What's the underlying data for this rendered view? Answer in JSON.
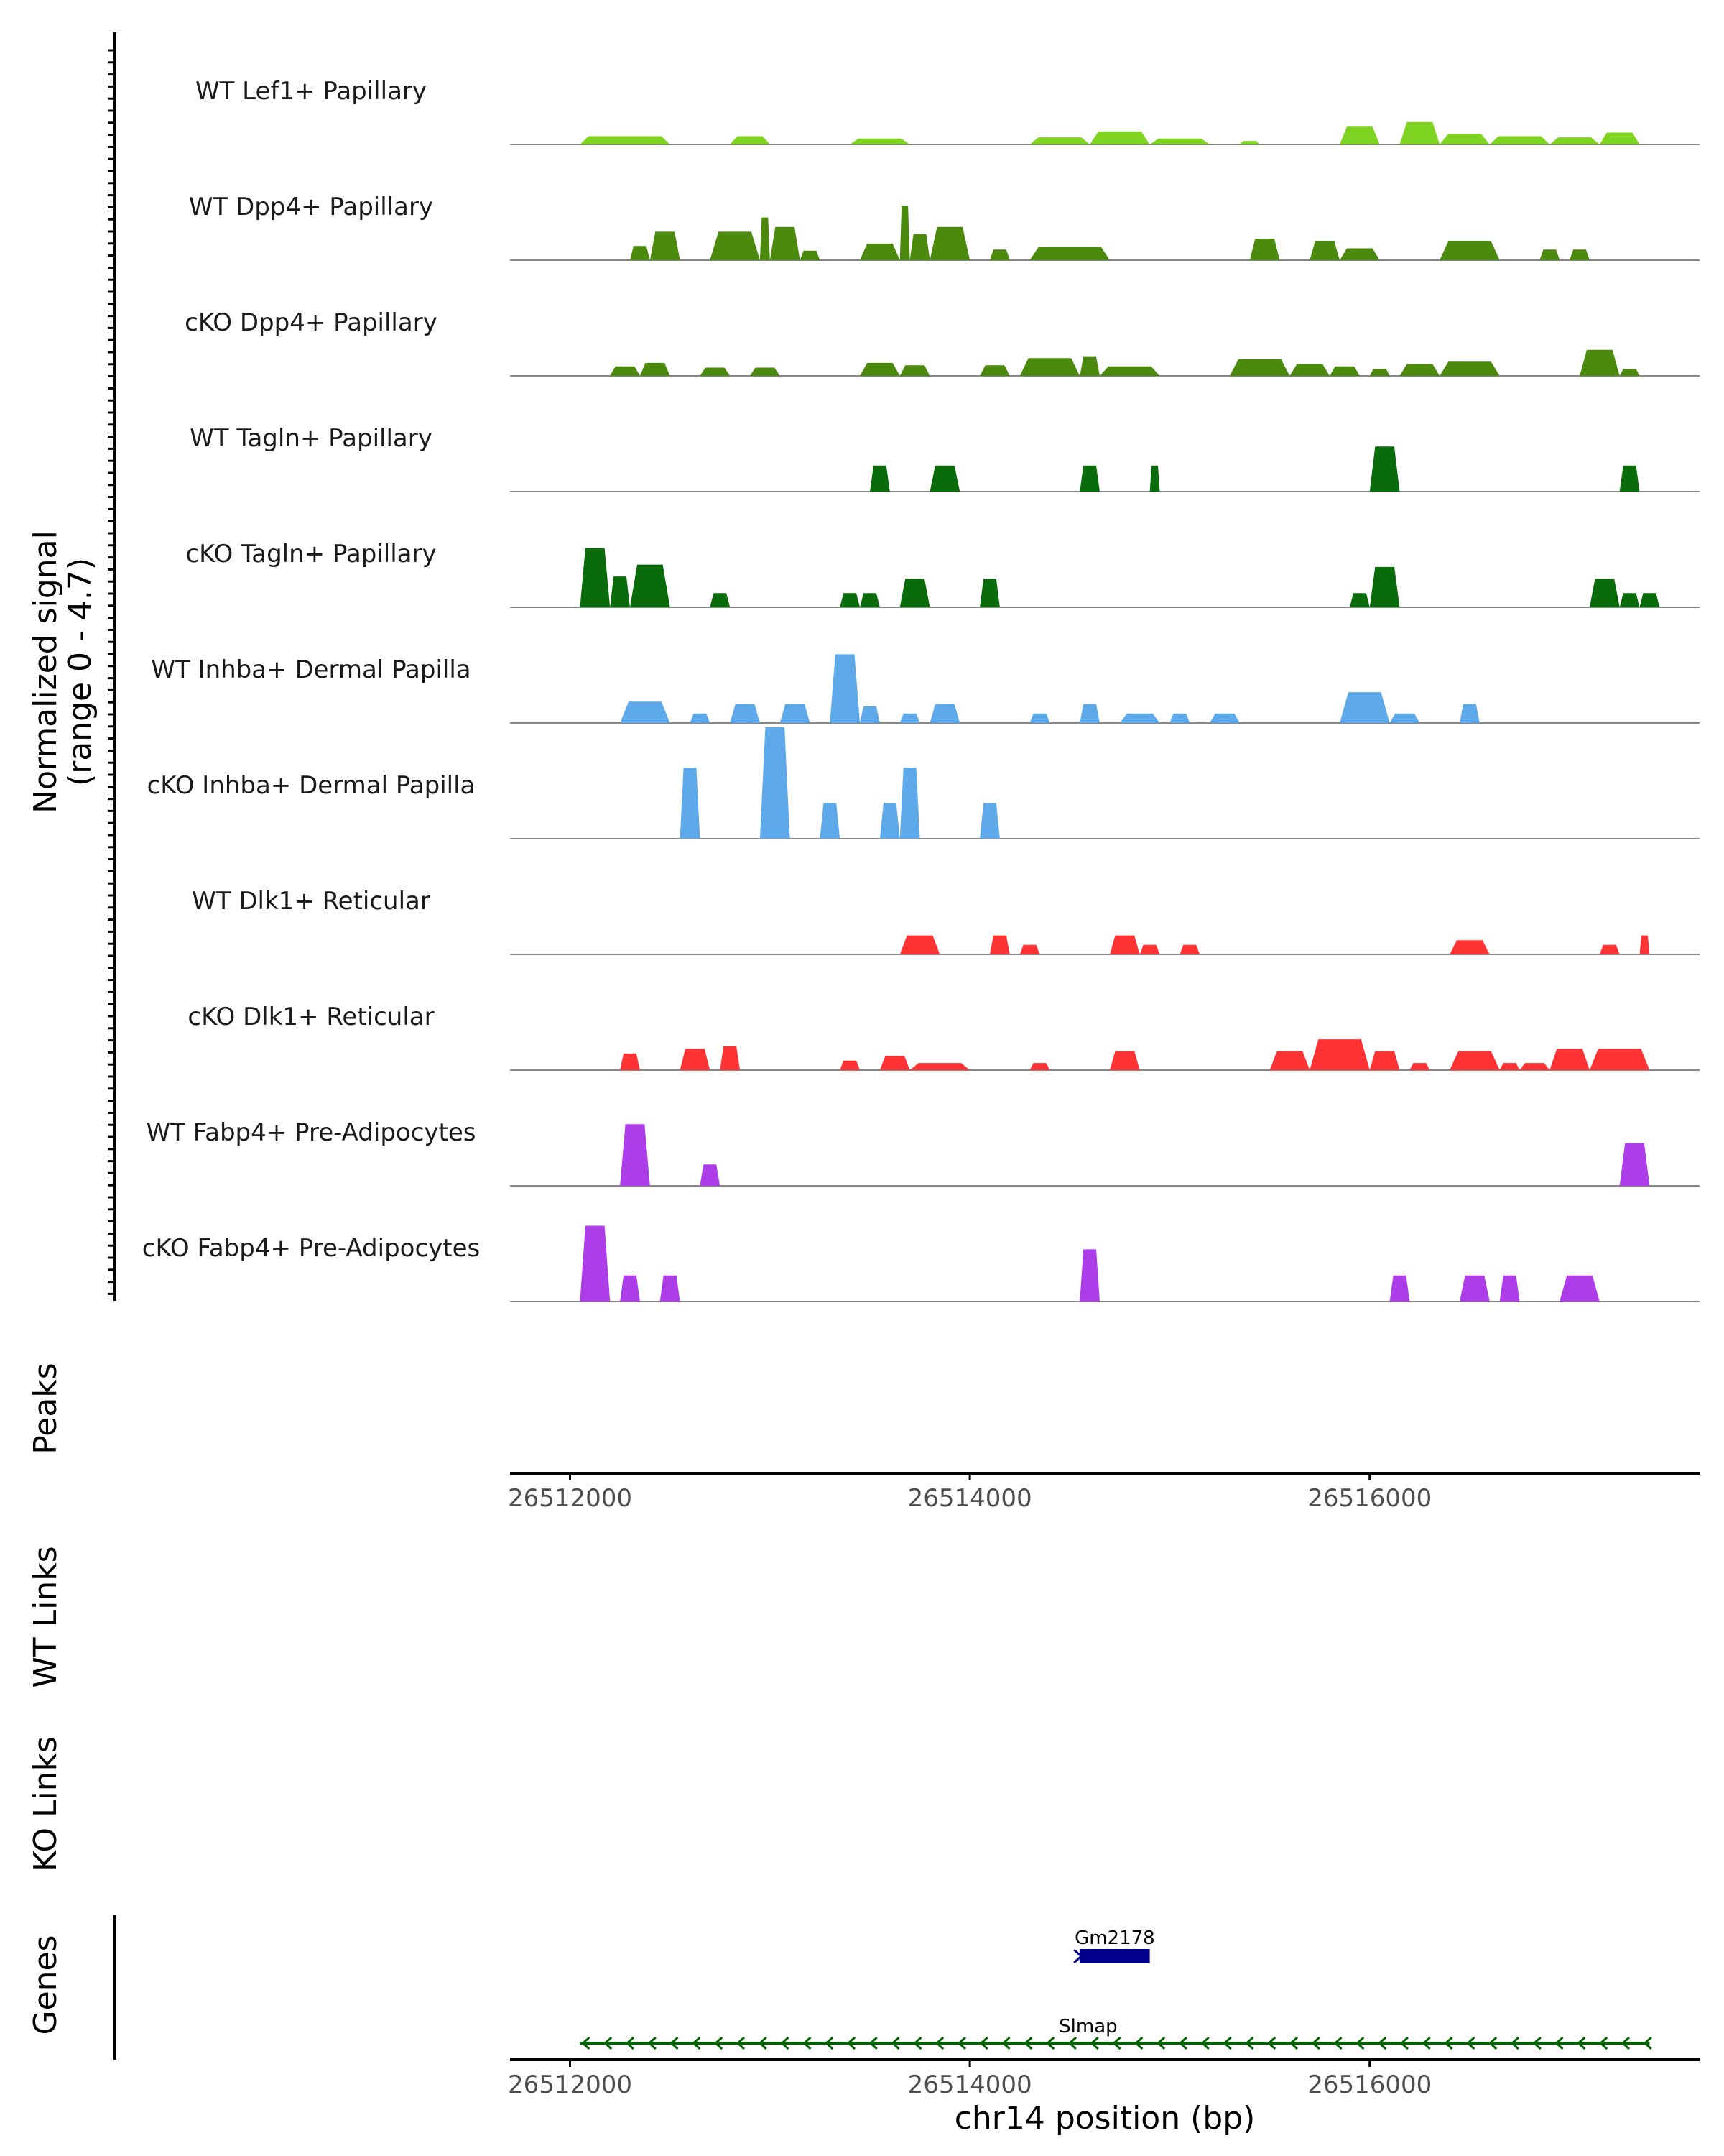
{
  "chart_data": {
    "type": "area",
    "title": "",
    "ylabel": "Normalized signal",
    "ylabel_range": "(range 0 - 4.7)",
    "ylim": [
      0,
      4.7
    ],
    "xlabel": "chr14 position (bp)",
    "xlim": [
      26511700,
      26517650
    ],
    "x_ticks": [
      26512000,
      26514000,
      26516000
    ],
    "x_tick_labels": [
      "26512000",
      "26514000",
      "26516000"
    ],
    "panels": {
      "peaks": "Peaks",
      "wt_links": "WT Links",
      "ko_links": "KO Links",
      "genes": "Genes"
    },
    "colors": {
      "lef1": "#7fd321",
      "dpp4": "#4c8a0e",
      "tagln": "#0a6b0a",
      "inhba": "#5ea9e9",
      "dlk1": "#ff3333",
      "fabp4": "#ad3de8",
      "gene_gm": "#00008b",
      "gene_slmap": "#006400"
    },
    "series": [
      {
        "name": "WT Lef1+ Papillary",
        "color": "#7fd321",
        "blocks": [
          [
            26512050,
            26512500,
            0.35
          ],
          [
            26512800,
            26513000,
            0.35
          ],
          [
            26513400,
            26513700,
            0.25
          ],
          [
            26514300,
            26514600,
            0.3
          ],
          [
            26514600,
            26514900,
            0.55
          ],
          [
            26514900,
            26515200,
            0.25
          ],
          [
            26515350,
            26515450,
            0.15
          ],
          [
            26515850,
            26516050,
            0.75
          ],
          [
            26516150,
            26516350,
            0.95
          ],
          [
            26516350,
            26516600,
            0.45
          ],
          [
            26516600,
            26516900,
            0.35
          ],
          [
            26516900,
            26517150,
            0.3
          ],
          [
            26517150,
            26517350,
            0.5
          ]
        ]
      },
      {
        "name": "WT Dpp4+ Papillary",
        "color": "#4c8a0e",
        "blocks": [
          [
            26512300,
            26512400,
            0.6
          ],
          [
            26512400,
            26512550,
            1.2
          ],
          [
            26512700,
            26512950,
            1.2
          ],
          [
            26512950,
            26513000,
            1.8
          ],
          [
            26513000,
            26513150,
            1.4
          ],
          [
            26513150,
            26513250,
            0.4
          ],
          [
            26513450,
            26513650,
            0.7
          ],
          [
            26513650,
            26513700,
            2.3
          ],
          [
            26513700,
            26513800,
            1.1
          ],
          [
            26513800,
            26514000,
            1.4
          ],
          [
            26514100,
            26514200,
            0.45
          ],
          [
            26514300,
            26514700,
            0.55
          ],
          [
            26515400,
            26515550,
            0.9
          ],
          [
            26515700,
            26515850,
            0.8
          ],
          [
            26515850,
            26516050,
            0.5
          ],
          [
            26516350,
            26516650,
            0.8
          ],
          [
            26516850,
            26516950,
            0.45
          ],
          [
            26517000,
            26517100,
            0.45
          ]
        ]
      },
      {
        "name": "cKO Dpp4+ Papillary",
        "color": "#4c8a0e",
        "blocks": [
          [
            26512200,
            26512350,
            0.4
          ],
          [
            26512350,
            26512500,
            0.55
          ],
          [
            26512650,
            26512800,
            0.35
          ],
          [
            26512900,
            26513050,
            0.35
          ],
          [
            26513450,
            26513650,
            0.55
          ],
          [
            26513650,
            26513800,
            0.45
          ],
          [
            26514050,
            26514200,
            0.45
          ],
          [
            26514250,
            26514550,
            0.75
          ],
          [
            26514550,
            26514650,
            0.8
          ],
          [
            26514650,
            26514950,
            0.4
          ],
          [
            26515300,
            26515600,
            0.7
          ],
          [
            26515600,
            26515800,
            0.5
          ],
          [
            26515800,
            26515950,
            0.4
          ],
          [
            26516000,
            26516100,
            0.3
          ],
          [
            26516150,
            26516350,
            0.5
          ],
          [
            26516350,
            26516650,
            0.6
          ],
          [
            26517050,
            26517250,
            1.1
          ],
          [
            26517250,
            26517350,
            0.3
          ]
        ]
      },
      {
        "name": "WT Tagln+ Papillary",
        "color": "#0a6b0a",
        "blocks": [
          [
            26513500,
            26513600,
            1.1
          ],
          [
            26513800,
            26513950,
            1.1
          ],
          [
            26514550,
            26514650,
            1.1
          ],
          [
            26514900,
            26514950,
            1.1
          ],
          [
            26516000,
            26516150,
            1.9
          ],
          [
            26517250,
            26517350,
            1.1
          ]
        ]
      },
      {
        "name": "cKO Tagln+ Papillary",
        "color": "#0a6b0a",
        "blocks": [
          [
            26512050,
            26512200,
            2.5
          ],
          [
            26512200,
            26512300,
            1.3
          ],
          [
            26512300,
            26512500,
            1.8
          ],
          [
            26512700,
            26512800,
            0.6
          ],
          [
            26513350,
            26513450,
            0.6
          ],
          [
            26513450,
            26513550,
            0.6
          ],
          [
            26513650,
            26513800,
            1.2
          ],
          [
            26514050,
            26514150,
            1.2
          ],
          [
            26515900,
            26516000,
            0.6
          ],
          [
            26516000,
            26516150,
            1.7
          ],
          [
            26517100,
            26517250,
            1.2
          ],
          [
            26517250,
            26517350,
            0.6
          ],
          [
            26517350,
            26517450,
            0.6
          ]
        ]
      },
      {
        "name": "WT Inhba+ Dermal Papilla",
        "color": "#5ea9e9",
        "blocks": [
          [
            26512250,
            26512500,
            0.9
          ],
          [
            26512600,
            26512700,
            0.4
          ],
          [
            26512800,
            26512950,
            0.8
          ],
          [
            26513050,
            26513200,
            0.8
          ],
          [
            26513300,
            26513450,
            2.9
          ],
          [
            26513450,
            26513550,
            0.7
          ],
          [
            26513650,
            26513750,
            0.4
          ],
          [
            26513800,
            26513950,
            0.8
          ],
          [
            26514300,
            26514400,
            0.4
          ],
          [
            26514550,
            26514650,
            0.8
          ],
          [
            26514750,
            26514950,
            0.4
          ],
          [
            26515000,
            26515100,
            0.4
          ],
          [
            26515200,
            26515350,
            0.4
          ],
          [
            26515850,
            26516100,
            1.3
          ],
          [
            26516100,
            26516250,
            0.4
          ],
          [
            26516450,
            26516550,
            0.8
          ]
        ]
      },
      {
        "name": "cKO Inhba+ Dermal Papilla",
        "color": "#5ea9e9",
        "blocks": [
          [
            26512550,
            26512650,
            3.0
          ],
          [
            26512950,
            26513100,
            4.7
          ],
          [
            26513250,
            26513350,
            1.5
          ],
          [
            26513550,
            26513650,
            1.5
          ],
          [
            26513650,
            26513750,
            3.0
          ],
          [
            26514050,
            26514150,
            1.5
          ]
        ]
      },
      {
        "name": "WT Dlk1+ Reticular",
        "color": "#ff3333",
        "blocks": [
          [
            26513650,
            26513850,
            0.8
          ],
          [
            26514100,
            26514200,
            0.8
          ],
          [
            26514250,
            26514350,
            0.4
          ],
          [
            26514700,
            26514850,
            0.8
          ],
          [
            26514850,
            26514950,
            0.4
          ],
          [
            26515050,
            26515150,
            0.4
          ],
          [
            26516400,
            26516600,
            0.6
          ],
          [
            26517150,
            26517250,
            0.4
          ],
          [
            26517350,
            26517400,
            0.8
          ]
        ]
      },
      {
        "name": "cKO Dlk1+ Reticular",
        "color": "#ff3333",
        "blocks": [
          [
            26512250,
            26512350,
            0.7
          ],
          [
            26512550,
            26512700,
            0.9
          ],
          [
            26512750,
            26512850,
            1.0
          ],
          [
            26513350,
            26513450,
            0.4
          ],
          [
            26513550,
            26513700,
            0.6
          ],
          [
            26513700,
            26514000,
            0.3
          ],
          [
            26514300,
            26514400,
            0.3
          ],
          [
            26514700,
            26514850,
            0.8
          ],
          [
            26515500,
            26515700,
            0.8
          ],
          [
            26515700,
            26516000,
            1.3
          ],
          [
            26516000,
            26516150,
            0.8
          ],
          [
            26516200,
            26516300,
            0.3
          ],
          [
            26516400,
            26516650,
            0.8
          ],
          [
            26516650,
            26516750,
            0.3
          ],
          [
            26516750,
            26516900,
            0.3
          ],
          [
            26516900,
            26517100,
            0.9
          ],
          [
            26517100,
            26517400,
            0.9
          ]
        ]
      },
      {
        "name": "WT Fabp4+ Pre-Adipocytes",
        "color": "#ad3de8",
        "blocks": [
          [
            26512250,
            26512400,
            2.6
          ],
          [
            26512650,
            26512750,
            0.9
          ],
          [
            26517250,
            26517400,
            1.8
          ]
        ]
      },
      {
        "name": "cKO Fabp4+ Pre-Adipocytes",
        "color": "#ad3de8",
        "blocks": [
          [
            26512050,
            26512200,
            3.2
          ],
          [
            26512250,
            26512350,
            1.1
          ],
          [
            26512450,
            26512550,
            1.1
          ],
          [
            26514550,
            26514650,
            2.2
          ],
          [
            26516100,
            26516200,
            1.1
          ],
          [
            26516450,
            26516600,
            1.1
          ],
          [
            26516650,
            26516750,
            1.1
          ],
          [
            26516950,
            26517150,
            1.1
          ]
        ]
      }
    ],
    "genes": [
      {
        "name": "Gm2178",
        "start": 26514550,
        "end": 26514900,
        "strand": "+",
        "color": "#00008b"
      },
      {
        "name": "Slmap",
        "start": 26512050,
        "end": 26517400,
        "strand": "-",
        "color": "#006400"
      }
    ]
  }
}
